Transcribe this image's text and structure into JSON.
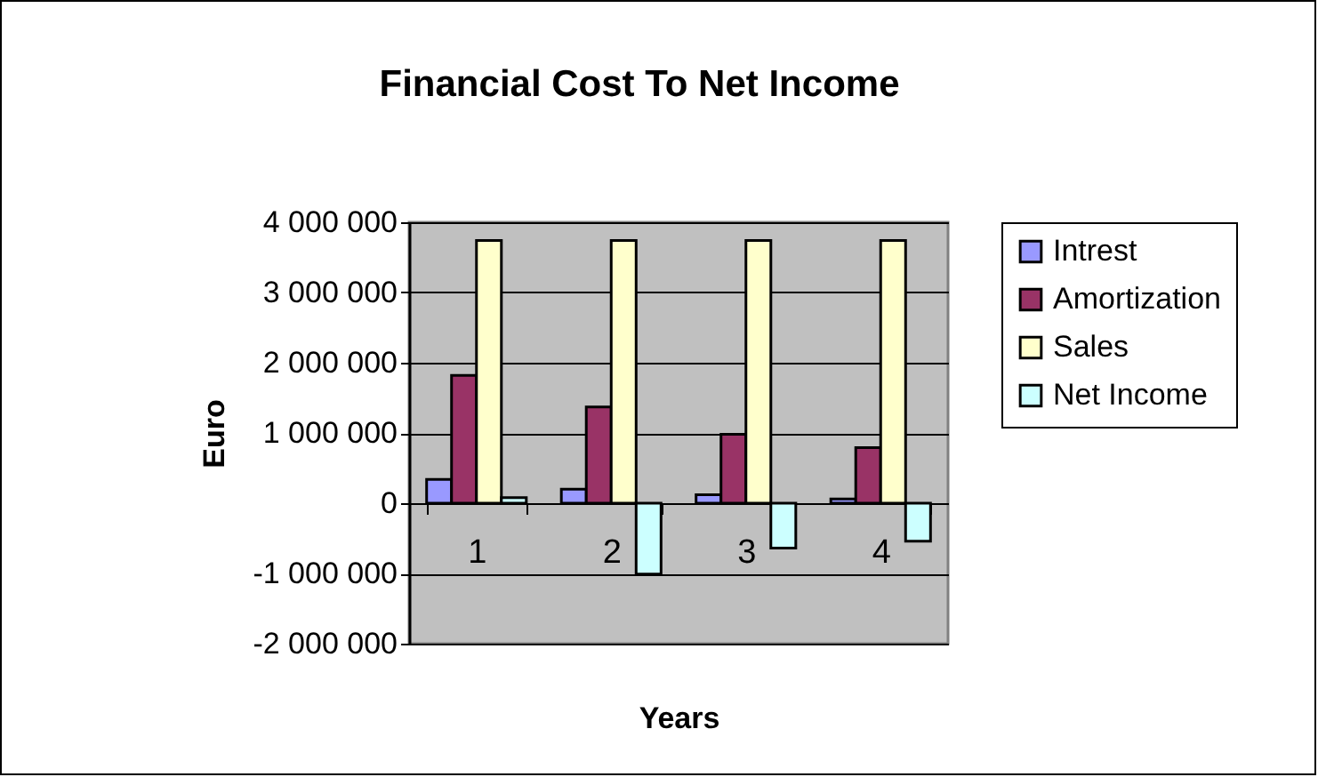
{
  "chart_data": {
    "type": "bar",
    "title": "Financial Cost To Net Income",
    "xlabel": "Years",
    "ylabel": "Euro",
    "categories": [
      "1",
      "2",
      "3",
      "4"
    ],
    "series": [
      {
        "name": "Intrest",
        "color": "#9999ff",
        "values": [
          340000,
          200000,
          120000,
          60000
        ]
      },
      {
        "name": "Amortization",
        "color": "#993366",
        "values": [
          1820000,
          1370000,
          980000,
          790000
        ]
      },
      {
        "name": "Sales",
        "color": "#ffffcc",
        "values": [
          3740000,
          3740000,
          3740000,
          3740000
        ]
      },
      {
        "name": "Net Income",
        "color": "#ccffff",
        "values": [
          80000,
          -1010000,
          -640000,
          -540000
        ]
      }
    ],
    "ylim": [
      -2000000,
      4000000
    ],
    "yticks": [
      {
        "value": -2000000,
        "label": "-2 000 000"
      },
      {
        "value": -1000000,
        "label": "-1 000 000"
      },
      {
        "value": 0,
        "label": "0"
      },
      {
        "value": 1000000,
        "label": "1 000 000"
      },
      {
        "value": 2000000,
        "label": "2 000 000"
      },
      {
        "value": 3000000,
        "label": "3 000 000"
      },
      {
        "value": 4000000,
        "label": "4 000 000"
      }
    ],
    "grid": "y",
    "legend": "right"
  }
}
